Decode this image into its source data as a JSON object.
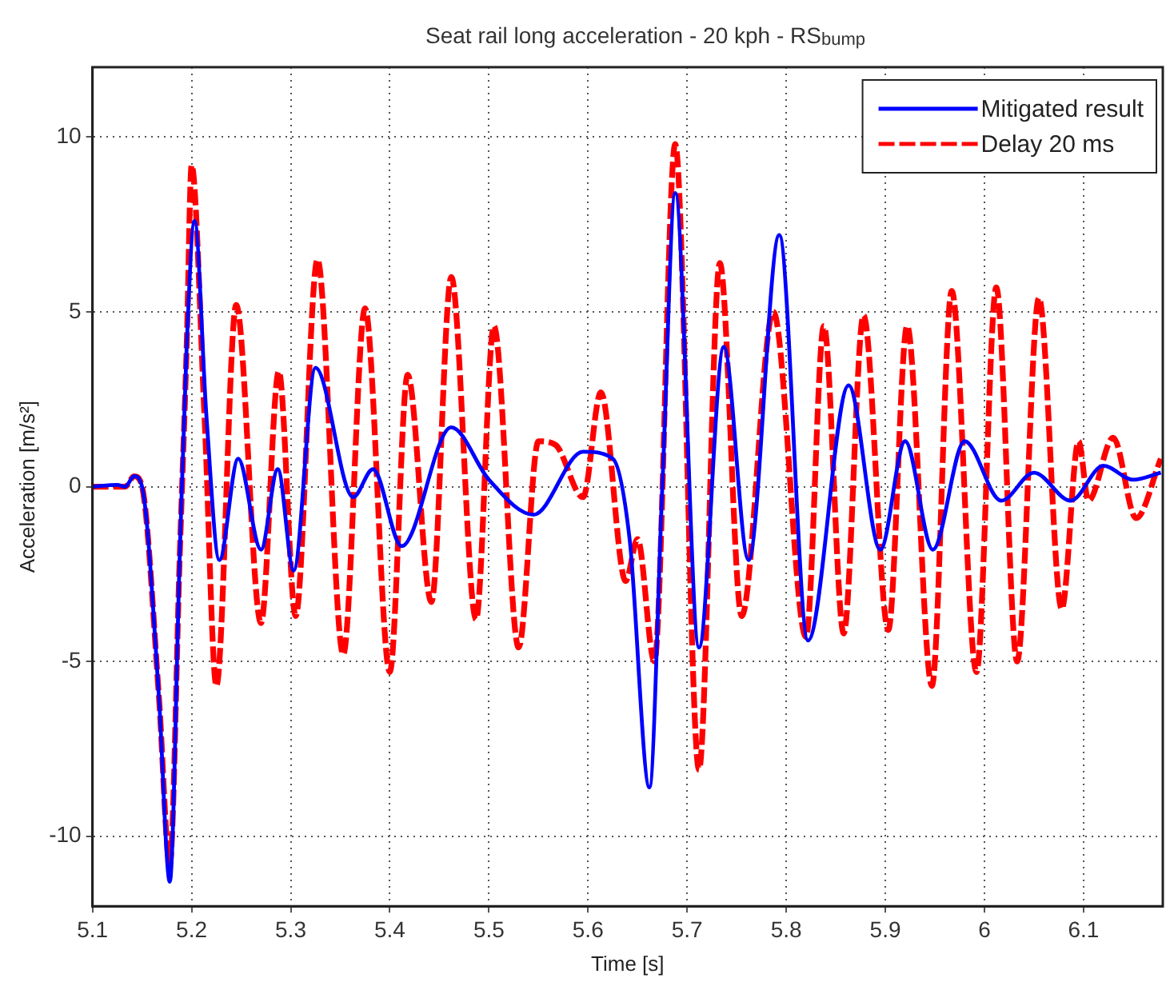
{
  "chart_data": {
    "type": "line",
    "title": "Seat rail long acceleration - 20 kph - RS$_{bump}$",
    "xlabel": "Time [s]",
    "ylabel": "Acceleration [m/s²]",
    "xlim": [
      5.1,
      6.18
    ],
    "xticks": [
      5.1,
      5.2,
      5.3,
      5.4,
      5.5,
      5.6,
      5.7,
      5.8,
      5.9,
      6,
      6.1
    ],
    "ylim": [
      -12,
      12
    ],
    "yticks": [
      -10,
      -5,
      0,
      5,
      10
    ],
    "grid": true,
    "legend": "top right",
    "marker": "none",
    "series": [
      {
        "name": "Mitigated result",
        "color": "#0000ff",
        "line_style": "solid",
        "x": [
          5.1,
          5.125,
          5.133,
          5.142,
          5.15,
          5.167,
          5.178,
          5.188,
          5.195,
          5.203,
          5.215,
          5.228,
          5.247,
          5.27,
          5.287,
          5.303,
          5.325,
          5.363,
          5.383,
          5.412,
          5.462,
          5.5,
          5.545,
          5.595,
          5.625,
          5.642,
          5.662,
          5.675,
          5.688,
          5.712,
          5.737,
          5.762,
          5.793,
          5.822,
          5.863,
          5.895,
          5.92,
          5.948,
          5.98,
          6.017,
          6.05,
          6.087,
          6.12,
          6.15,
          6.178
        ],
        "values": [
          0,
          0.05,
          0,
          0.3,
          0,
          -6,
          -11.3,
          -2,
          4,
          7.6,
          2,
          -2.1,
          0.8,
          -1.8,
          0.5,
          -2.4,
          3.4,
          -0.3,
          0.5,
          -1.7,
          1.7,
          0.2,
          -0.8,
          1.0,
          0.8,
          -1.5,
          -8.6,
          0,
          8.4,
          -4.6,
          4.0,
          -2.1,
          7.2,
          -4.4,
          2.9,
          -1.8,
          1.3,
          -1.8,
          1.3,
          -0.4,
          0.4,
          -0.4,
          0.6,
          0.2,
          0.4
        ]
      },
      {
        "name": "Delay 20 ms",
        "color": "#ff0000",
        "line_style": "dashed",
        "x": [
          5.1,
          5.133,
          5.142,
          5.15,
          5.167,
          5.178,
          5.188,
          5.195,
          5.2,
          5.213,
          5.225,
          5.245,
          5.27,
          5.288,
          5.305,
          5.327,
          5.353,
          5.375,
          5.4,
          5.418,
          5.442,
          5.462,
          5.487,
          5.505,
          5.53,
          5.55,
          5.567,
          5.595,
          5.613,
          5.638,
          5.65,
          5.667,
          5.688,
          5.712,
          5.733,
          5.755,
          5.787,
          5.82,
          5.838,
          5.858,
          5.878,
          5.903,
          5.922,
          5.947,
          5.967,
          5.992,
          6.012,
          6.033,
          6.055,
          6.078,
          6.095,
          6.105,
          6.13,
          6.153,
          6.178
        ],
        "values": [
          0,
          0,
          0.3,
          0,
          -6,
          -10.8,
          -2,
          4,
          9.2,
          2,
          -5.7,
          5.2,
          -3.9,
          3.3,
          -3.7,
          6.5,
          -4.8,
          5.1,
          -5.3,
          3.2,
          -3.3,
          6.0,
          -3.8,
          4.6,
          -4.6,
          1.3,
          1.2,
          -0.3,
          2.7,
          -2.7,
          -1.5,
          -5,
          9.8,
          -8.1,
          6.4,
          -3.7,
          5.0,
          -4.3,
          4.6,
          -4.2,
          4.9,
          -4.1,
          4.6,
          -5.7,
          5.6,
          -5.3,
          5.7,
          -5.0,
          5.4,
          -3.5,
          1.3,
          -0.4,
          1.4,
          -0.9,
          0.8
        ]
      }
    ]
  }
}
